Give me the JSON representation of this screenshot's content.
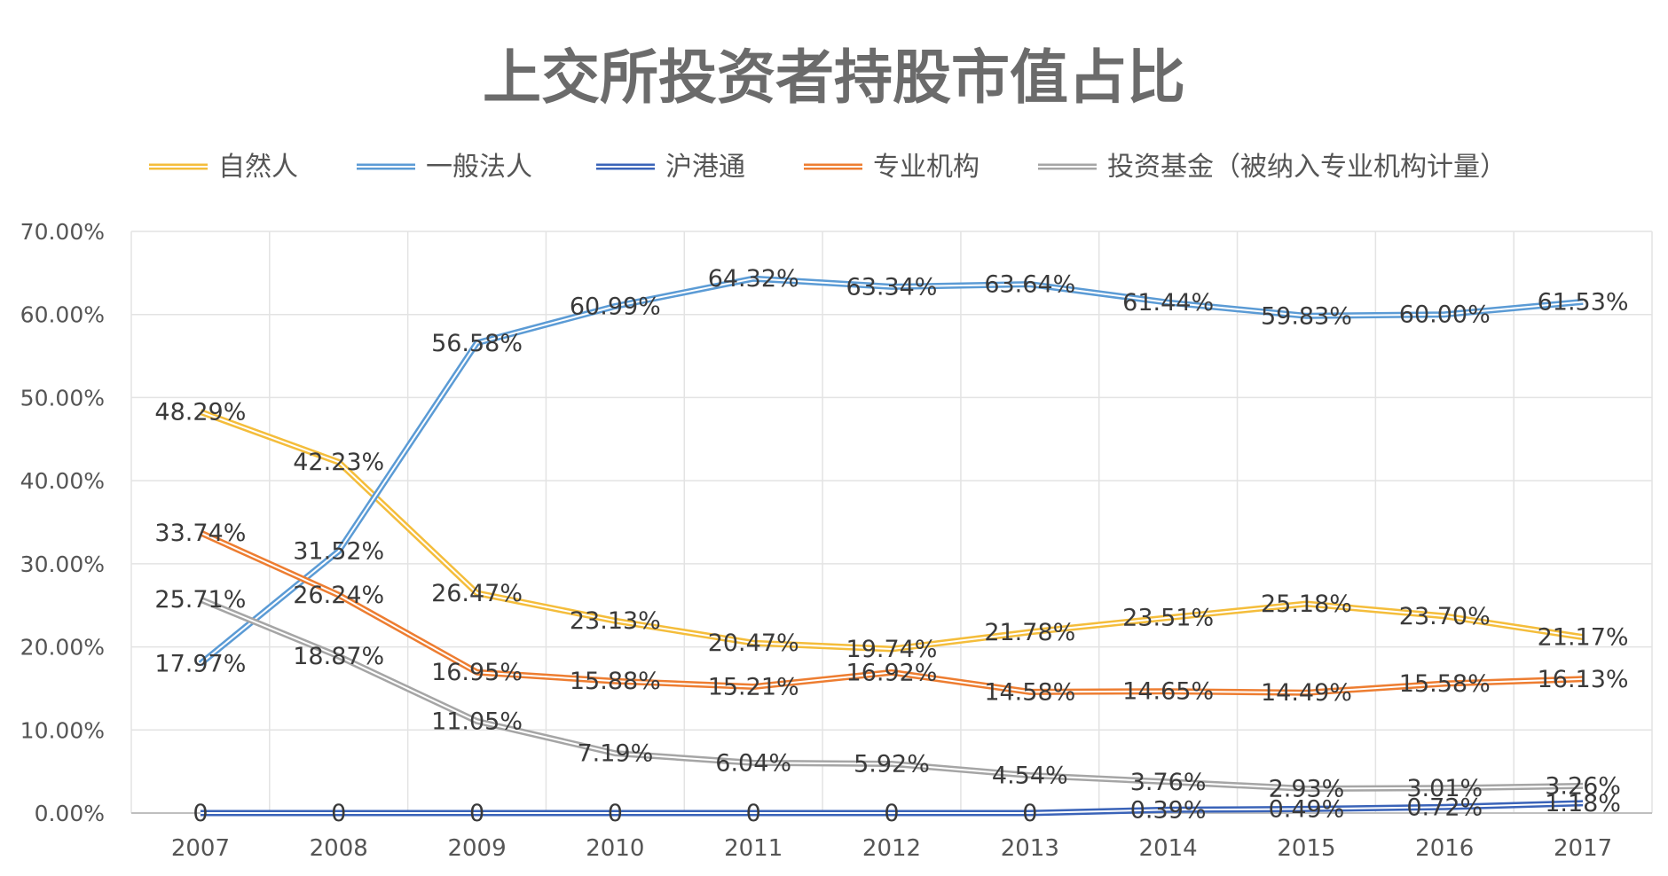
{
  "chart_data": {
    "type": "line",
    "title": "上交所投资者持股市值占比",
    "categories": [
      "2007",
      "2008",
      "2009",
      "2010",
      "2011",
      "2012",
      "2013",
      "2014",
      "2015",
      "2016",
      "2017"
    ],
    "ylim": [
      0,
      70
    ],
    "y_ticks": [
      "0.00%",
      "10.00%",
      "20.00%",
      "30.00%",
      "40.00%",
      "50.00%",
      "60.00%",
      "70.00%"
    ],
    "grid": true,
    "legend_position": "top",
    "series": [
      {
        "name": "自然人",
        "color": "#f4bd3b",
        "values": [
          48.29,
          42.23,
          26.47,
          23.13,
          20.47,
          19.74,
          21.78,
          23.51,
          25.18,
          23.7,
          21.17
        ],
        "labels": [
          "48.29%",
          "42.23%",
          "26.47%",
          "23.13%",
          "20.47%",
          "19.74%",
          "21.78%",
          "23.51%",
          "25.18%",
          "23.70%",
          "21.17%"
        ]
      },
      {
        "name": "一般法人",
        "color": "#5b9bd5",
        "values": [
          17.97,
          31.52,
          56.58,
          60.99,
          64.32,
          63.34,
          63.64,
          61.44,
          59.83,
          60.0,
          61.53
        ],
        "labels": [
          "17.97%",
          "31.52%",
          "56.58%",
          "60.99%",
          "64.32%",
          "63.34%",
          "63.64%",
          "61.44%",
          "59.83%",
          "60.00%",
          "61.53%"
        ]
      },
      {
        "name": "沪港通",
        "color": "#3a63b8",
        "values": [
          0,
          0,
          0,
          0,
          0,
          0,
          0,
          0.39,
          0.49,
          0.72,
          1.18
        ],
        "labels": [
          "0",
          "0",
          "0",
          "0",
          "0",
          "0",
          "0",
          "0.39%",
          "0.49%",
          "0.72%",
          "1.18%"
        ]
      },
      {
        "name": "专业机构",
        "color": "#ed7d31",
        "values": [
          33.74,
          26.24,
          16.95,
          15.88,
          15.21,
          16.92,
          14.58,
          14.65,
          14.49,
          15.58,
          16.13
        ],
        "labels": [
          "33.74%",
          "26.24%",
          "16.95%",
          "15.88%",
          "15.21%",
          "16.92%",
          "14.58%",
          "14.65%",
          "14.49%",
          "15.58%",
          "16.13%"
        ]
      },
      {
        "name": "投资基金（被纳入专业机构计量）",
        "color": "#a5a5a5",
        "values": [
          25.71,
          18.87,
          11.05,
          7.19,
          6.04,
          5.92,
          4.54,
          3.76,
          2.93,
          3.01,
          3.26
        ],
        "labels": [
          "25.71%",
          "18.87%",
          "11.05%",
          "7.19%",
          "6.04%",
          "5.92%",
          "4.54%",
          "3.76%",
          "2.93%",
          "3.01%",
          "3.26%"
        ]
      }
    ]
  }
}
